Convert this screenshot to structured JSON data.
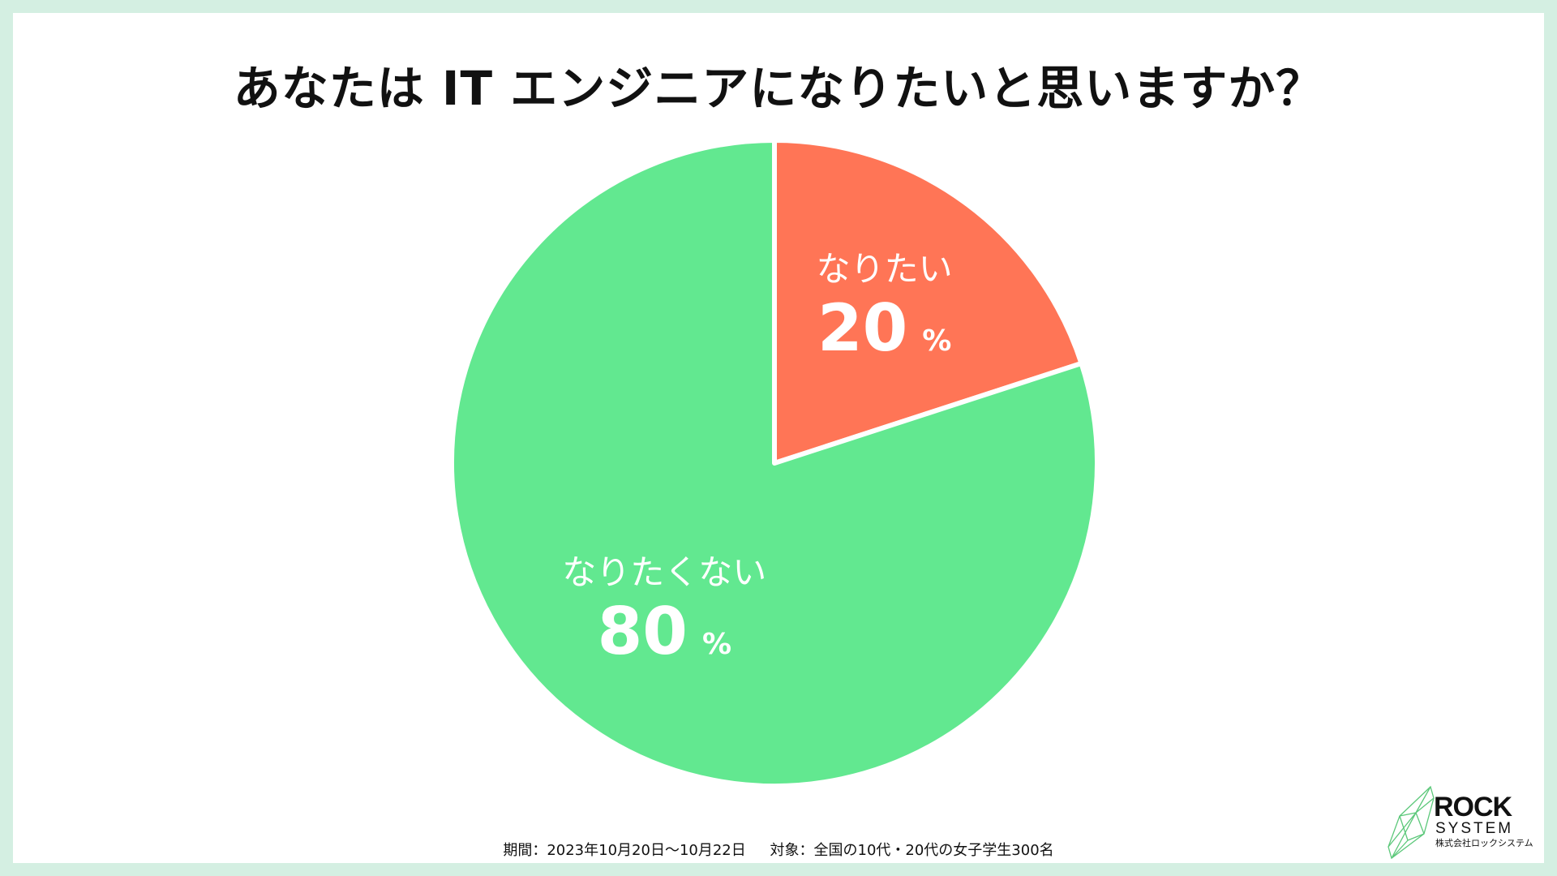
{
  "title": "あなたは IT エンジニアになりたいと思いますか？",
  "chart_data": {
    "type": "pie",
    "title": "あなたは IT エンジニアになりたいと思いますか？",
    "slices": [
      {
        "label": "なりたい",
        "value": 20,
        "value_text": "20",
        "unit": "%",
        "color": "#ff7556"
      },
      {
        "label": "なりたくない",
        "value": 80,
        "value_text": "80",
        "unit": "%",
        "color": "#62e890"
      }
    ],
    "start_angle_deg": 0,
    "direction": "clockwise",
    "separator_color": "#ffffff"
  },
  "footnote": {
    "period": "期間：2023年10月20日〜10月22日",
    "target": "対象：全国の10代・20代の女子学生300名"
  },
  "logo": {
    "main": "ROCK",
    "sub": "SYSTEM",
    "company": "株式会社ロックシステム",
    "icon": "leaf-crystal-icon",
    "color": "#5cc87a"
  }
}
